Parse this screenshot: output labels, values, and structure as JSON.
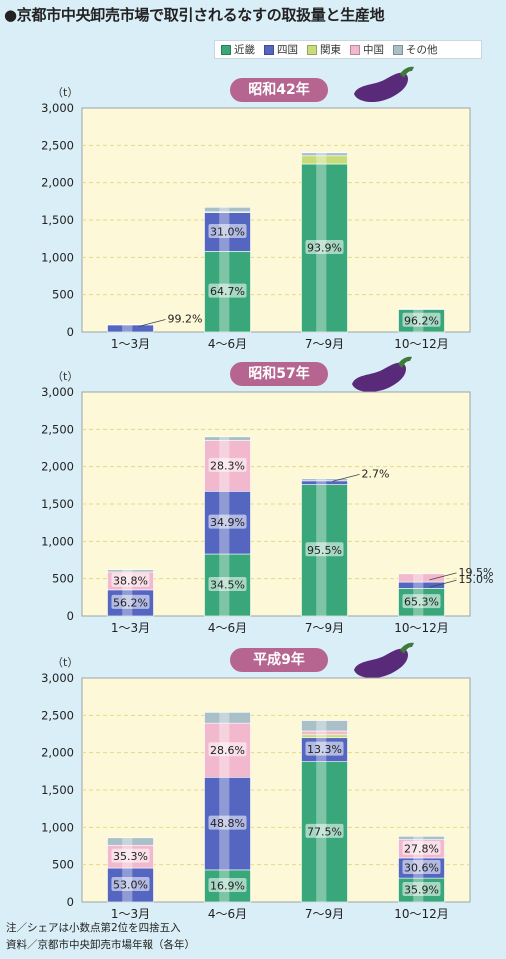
{
  "title": "●京都市中央卸売市場で取引されるなすの取扱量と生産地",
  "legend": [
    {
      "label": "近畿",
      "color": "#3aa77a"
    },
    {
      "label": "四国",
      "color": "#5566c0"
    },
    {
      "label": "関東",
      "color": "#c7dd7a"
    },
    {
      "label": "中国",
      "color": "#f2b8cd"
    },
    {
      "label": "その他",
      "color": "#a9c0c8"
    }
  ],
  "unit": "（t）",
  "notes": [
    "注／シェアは小数点第2位を四捨五入",
    "資料／京都市中央卸売市場年報（各年）"
  ],
  "chart_data": [
    {
      "type": "bar",
      "stacked": true,
      "title": "昭和42年",
      "ylabel": "（t）",
      "ylim": [
        0,
        3000
      ],
      "yticks": [
        "0",
        "500",
        "1,000",
        "1,500",
        "2,000",
        "2,500",
        "3,000"
      ],
      "categories": [
        "1～3月",
        "4～6月",
        "7～9月",
        "10～12月"
      ],
      "series": [
        {
          "name": "近畿",
          "values": [
            0,
            1080,
            2250,
            300
          ]
        },
        {
          "name": "四国",
          "values": [
            99,
            520,
            0,
            0
          ]
        },
        {
          "name": "関東",
          "values": [
            0,
            0,
            110,
            0
          ]
        },
        {
          "name": "中国",
          "values": [
            0,
            10,
            0,
            0
          ]
        },
        {
          "name": "その他",
          "values": [
            1,
            60,
            40,
            12
          ]
        }
      ],
      "labels": [
        {
          "text": "99.2%",
          "cat": 0,
          "y": 100,
          "callout": true
        },
        {
          "text": "64.7%",
          "cat": 1,
          "y": 540
        },
        {
          "text": "31.0%",
          "cat": 1,
          "y": 1340
        },
        {
          "text": "93.9%",
          "cat": 2,
          "y": 1125
        },
        {
          "text": "96.2%",
          "cat": 3,
          "y": 150
        }
      ]
    },
    {
      "type": "bar",
      "stacked": true,
      "title": "昭和57年",
      "ylabel": "（t）",
      "ylim": [
        0,
        3000
      ],
      "yticks": [
        "0",
        "500",
        "1,000",
        "1,500",
        "2,000",
        "2,500",
        "3,000"
      ],
      "categories": [
        "1～3月",
        "4～6月",
        "7～9月",
        "10～12月"
      ],
      "series": [
        {
          "name": "近畿",
          "values": [
            0,
            830,
            1760,
            370
          ]
        },
        {
          "name": "四国",
          "values": [
            350,
            840,
            50,
            85
          ]
        },
        {
          "name": "関東",
          "values": [
            0,
            0,
            0,
            0
          ]
        },
        {
          "name": "中国",
          "values": [
            240,
            680,
            0,
            110
          ]
        },
        {
          "name": "その他",
          "values": [
            30,
            50,
            30,
            0
          ]
        }
      ],
      "labels": [
        {
          "text": "56.2%",
          "cat": 0,
          "y": 175
        },
        {
          "text": "38.8%",
          "cat": 0,
          "y": 470
        },
        {
          "text": "34.5%",
          "cat": 1,
          "y": 415
        },
        {
          "text": "34.9%",
          "cat": 1,
          "y": 1250
        },
        {
          "text": "28.3%",
          "cat": 1,
          "y": 2010
        },
        {
          "text": "95.5%",
          "cat": 2,
          "y": 880
        },
        {
          "text": "2.7%",
          "cat": 2,
          "y": 1830,
          "callout": true
        },
        {
          "text": "65.3%",
          "cat": 3,
          "y": 185
        },
        {
          "text": "15.0%",
          "cat": 3,
          "y": 412,
          "callout": true
        },
        {
          "text": "19.5%",
          "cat": 3,
          "y": 510,
          "callout": true
        }
      ]
    },
    {
      "type": "bar",
      "stacked": true,
      "title": "平成9年",
      "ylabel": "（t）",
      "ylim": [
        0,
        3000
      ],
      "yticks": [
        "0",
        "500",
        "1,000",
        "1,500",
        "2,000",
        "2,500",
        "3,000"
      ],
      "categories": [
        "1～3月",
        "4～6月",
        "7～9月",
        "10～12月"
      ],
      "series": [
        {
          "name": "近畿",
          "values": [
            0,
            430,
            1880,
            320
          ]
        },
        {
          "name": "四国",
          "values": [
            455,
            1240,
            320,
            270
          ]
        },
        {
          "name": "関東",
          "values": [
            0,
            0,
            40,
            0
          ]
        },
        {
          "name": "中国",
          "values": [
            305,
            725,
            50,
            245
          ]
        },
        {
          "name": "その他",
          "values": [
            100,
            145,
            140,
            45
          ]
        }
      ],
      "labels": [
        {
          "text": "53.0%",
          "cat": 0,
          "y": 227
        },
        {
          "text": "35.3%",
          "cat": 0,
          "y": 607
        },
        {
          "text": "16.9%",
          "cat": 1,
          "y": 215
        },
        {
          "text": "48.8%",
          "cat": 1,
          "y": 1050
        },
        {
          "text": "28.6%",
          "cat": 1,
          "y": 2032
        },
        {
          "text": "77.5%",
          "cat": 2,
          "y": 940
        },
        {
          "text": "13.3%",
          "cat": 2,
          "y": 2040
        },
        {
          "text": "35.9%",
          "cat": 3,
          "y": 160
        },
        {
          "text": "30.6%",
          "cat": 3,
          "y": 455
        },
        {
          "text": "27.8%",
          "cat": 3,
          "y": 712
        }
      ]
    }
  ]
}
